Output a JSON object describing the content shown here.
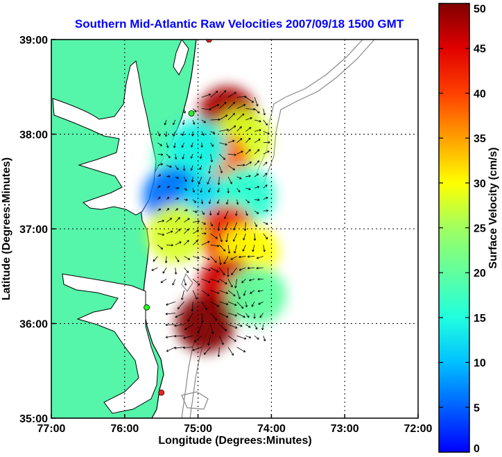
{
  "chart_data": {
    "type": "heatmap",
    "title": "Southern Mid-Atlantic Raw Velocities 2007/09/18 1500 GMT",
    "xlabel": "Longitude (Degrees:Minutes)",
    "ylabel": "Latitude (Degrees:Minutes)",
    "x_ticks": [
      "77:00",
      "76:00",
      "75:00",
      "74:00",
      "73:00",
      "72:00"
    ],
    "y_ticks": [
      "39:00",
      "38:00",
      "37:00",
      "36:00",
      "35:00"
    ],
    "xlim": [
      -77,
      -72
    ],
    "ylim": [
      35,
      39
    ],
    "grid": true,
    "colorbar": {
      "label": "Surface Velocity (cm/s)",
      "range": [
        0,
        50
      ],
      "ticks": [
        "0",
        "5",
        "10",
        "15",
        "20",
        "25",
        "30",
        "35",
        "40",
        "45",
        "50"
      ]
    },
    "velocity_regions": [
      {
        "lon": -74.6,
        "lat": 38.2,
        "speed": 48
      },
      {
        "lon": -74.4,
        "lat": 37.95,
        "speed": 28
      },
      {
        "lon": -74.7,
        "lat": 37.7,
        "speed": 38
      },
      {
        "lon": -75.2,
        "lat": 37.75,
        "speed": 18
      },
      {
        "lon": -75.0,
        "lat": 37.85,
        "speed": 14
      },
      {
        "lon": -75.35,
        "lat": 37.35,
        "speed": 6
      },
      {
        "lon": -74.85,
        "lat": 37.25,
        "speed": 12
      },
      {
        "lon": -74.35,
        "lat": 37.35,
        "speed": 16
      },
      {
        "lon": -74.6,
        "lat": 36.95,
        "speed": 42
      },
      {
        "lon": -75.3,
        "lat": 36.95,
        "speed": 28
      },
      {
        "lon": -74.3,
        "lat": 36.75,
        "speed": 30
      },
      {
        "lon": -74.6,
        "lat": 36.4,
        "speed": 46
      },
      {
        "lon": -74.2,
        "lat": 36.3,
        "speed": 20
      },
      {
        "lon": -74.9,
        "lat": 36.0,
        "speed": 50
      }
    ],
    "stations": [
      {
        "lon": -74.85,
        "lat": 39.0,
        "color": "#ff2020"
      },
      {
        "lon": -75.09,
        "lat": 38.22,
        "color": "#20ff20"
      },
      {
        "lon": -75.7,
        "lat": 36.17,
        "color": "#20ff20"
      },
      {
        "lon": -75.5,
        "lat": 35.27,
        "color": "#ff2020"
      }
    ],
    "colors": {
      "land": "#55f5aa",
      "coast": "#000000",
      "bathymetry": "#888888",
      "title": "#0000ff"
    }
  }
}
